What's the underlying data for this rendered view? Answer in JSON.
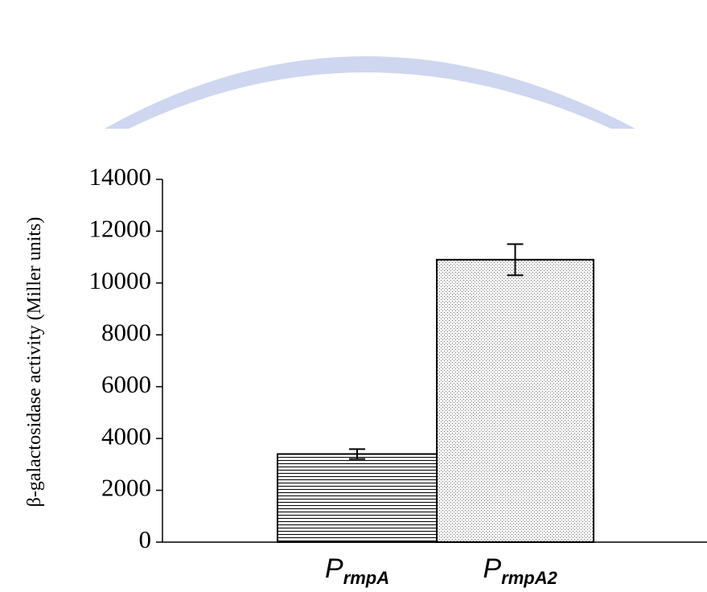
{
  "chart_data": {
    "type": "bar",
    "y_label": "β-galactosidase activity (Miller units)",
    "categories": [
      "P",
      "P"
    ],
    "category_subscripts": [
      "rmpA",
      "rmpA2"
    ],
    "values": [
      3400,
      10900
    ],
    "errors": [
      190,
      600
    ],
    "ylim": [
      0,
      14000
    ],
    "yticks": [
      0,
      2000,
      4000,
      6000,
      8000,
      10000,
      12000,
      14000
    ]
  }
}
